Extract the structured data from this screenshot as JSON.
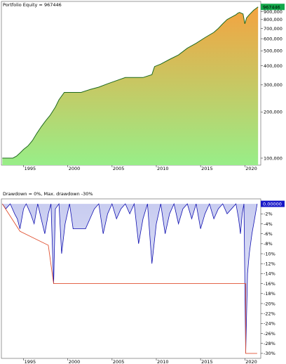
{
  "chart_data": [
    {
      "type": "area",
      "title": "Portfolio Equity = 967446",
      "scale": "log",
      "ylim": [
        90000,
        1050000
      ],
      "xlim": [
        1992.5,
        2021.8
      ],
      "grid": false,
      "legend": "none",
      "colors": {
        "fill_top": "#f4a340",
        "fill_bottom": "#98ee88",
        "line": "#1f6a1f",
        "badge_bg": "#13a84a",
        "badge_text": "#000000"
      },
      "x_ticks": [
        {
          "x": 1995,
          "label": "1995"
        },
        {
          "x": 2000,
          "label": "2000"
        },
        {
          "x": 2005,
          "label": "2005"
        },
        {
          "x": 2010,
          "label": "2010"
        },
        {
          "x": 2015,
          "label": "2015"
        },
        {
          "x": 2020,
          "label": "2020"
        }
      ],
      "y_ticks": [
        {
          "y": 900000,
          "label": "900,000"
        },
        {
          "y": 800000,
          "label": "800,000"
        },
        {
          "y": 700000,
          "label": "700,000"
        },
        {
          "y": 600000,
          "label": "600,000"
        },
        {
          "y": 500000,
          "label": "500,000"
        },
        {
          "y": 400000,
          "label": "400,000"
        },
        {
          "y": 300000,
          "label": "300,000"
        },
        {
          "y": 200000,
          "label": "200,000"
        },
        {
          "y": 100000,
          "label": "100,000"
        }
      ],
      "last_value_label": "967446",
      "last_value": 967446,
      "x": [
        1992.6,
        1993.8,
        1994.2,
        1994.6,
        1995.0,
        1995.5,
        1996.0,
        1996.5,
        1997.0,
        1997.5,
        1998.0,
        1998.6,
        1999.0,
        1999.6,
        2000.6,
        2001.5,
        2002.5,
        2003.5,
        2004.5,
        2005.5,
        2006.5,
        2007.5,
        2008.5,
        2009.5,
        2009.8,
        2010.5,
        2011.5,
        2012.5,
        2013.5,
        2014.5,
        2015.5,
        2016.5,
        2017.0,
        2017.5,
        2018.0,
        2018.5,
        2019.0,
        2019.2,
        2019.4,
        2019.8,
        2020.0,
        2020.2,
        2020.5,
        2021.0,
        2021.5
      ],
      "y": [
        100000,
        100000,
        103000,
        108000,
        114000,
        120000,
        130000,
        145000,
        160000,
        175000,
        190000,
        215000,
        240000,
        268000,
        268000,
        268000,
        280000,
        290000,
        305000,
        320000,
        335000,
        335000,
        335000,
        350000,
        395000,
        410000,
        440000,
        470000,
        520000,
        560000,
        610000,
        660000,
        700000,
        750000,
        800000,
        830000,
        860000,
        880000,
        890000,
        870000,
        750000,
        820000,
        860000,
        920000,
        967446
      ]
    },
    {
      "type": "area",
      "title": "Drawdown = 0%, Max. drawdown -30%",
      "ylim": [
        -31,
        1
      ],
      "xlim": [
        1992.5,
        2021.8
      ],
      "grid": false,
      "legend": "none",
      "colors": {
        "fill_top": "#c8ccf0",
        "fill_bottom": "#eef0fb",
        "line": "#1010b0",
        "max_line": "#e05030",
        "badge_bg": "#1717c8",
        "badge_text": "#ffffff"
      },
      "x_ticks": [
        {
          "x": 1995,
          "label": "1995"
        },
        {
          "x": 2000,
          "label": "2000"
        },
        {
          "x": 2005,
          "label": "2005"
        },
        {
          "x": 2010,
          "label": "2010"
        },
        {
          "x": 2015,
          "label": "2015"
        },
        {
          "x": 2020,
          "label": "2020"
        }
      ],
      "y_ticks": [
        {
          "y": -2,
          "label": "-2%"
        },
        {
          "y": -4,
          "label": "-4%"
        },
        {
          "y": -6,
          "label": "-6%"
        },
        {
          "y": -8,
          "label": "-8%"
        },
        {
          "y": -10,
          "label": "-10%"
        },
        {
          "y": -12,
          "label": "-12%"
        },
        {
          "y": -14,
          "label": "-14%"
        },
        {
          "y": -16,
          "label": "-16%"
        },
        {
          "y": -18,
          "label": "-18%"
        },
        {
          "y": -20,
          "label": "-20%"
        },
        {
          "y": -22,
          "label": "-22%"
        },
        {
          "y": -24,
          "label": "-24%"
        },
        {
          "y": -26,
          "label": "-26%"
        },
        {
          "y": -28,
          "label": "-28%"
        },
        {
          "y": -30,
          "label": "-30%"
        }
      ],
      "last_value_label": "0.00000",
      "last_value": 0,
      "x": [
        1992.6,
        1993.0,
        1993.5,
        1994.0,
        1994.3,
        1994.6,
        1995.0,
        1995.3,
        1995.8,
        1996.2,
        1996.6,
        1997.0,
        1997.4,
        1997.8,
        1998.1,
        1998.4,
        1998.6,
        1999.0,
        1999.3,
        1999.7,
        2000.2,
        2000.6,
        2001.0,
        2001.5,
        2002.0,
        2002.5,
        2003.0,
        2003.5,
        2004.0,
        2004.5,
        2005.0,
        2005.5,
        2006.0,
        2006.5,
        2007.0,
        2007.5,
        2008.0,
        2008.5,
        2009.0,
        2009.5,
        2010.0,
        2010.5,
        2011.0,
        2011.5,
        2012.0,
        2012.5,
        2013.0,
        2013.5,
        2014.0,
        2014.5,
        2015.0,
        2015.5,
        2016.0,
        2016.5,
        2017.0,
        2017.5,
        2018.0,
        2018.5,
        2019.0,
        2019.3,
        2019.5,
        2019.7,
        2019.9,
        2020.1,
        2020.3,
        2020.5,
        2020.8,
        2021.1,
        2021.4
      ],
      "y": [
        0,
        -1,
        0,
        -2,
        -3,
        -5,
        -1,
        0,
        -2,
        -4,
        0,
        -3,
        -6,
        -2,
        0,
        -16,
        -1,
        0,
        -10,
        -4,
        0,
        -5,
        -5,
        -5,
        -5,
        -3,
        -1,
        0,
        -6,
        -2,
        0,
        -3,
        -1,
        0,
        -2,
        0,
        -8,
        -3,
        0,
        -12,
        -4,
        0,
        -6,
        -2,
        0,
        -4,
        -1,
        0,
        -3,
        0,
        -5,
        -2,
        0,
        -3,
        -1,
        0,
        -2,
        -1,
        0,
        -3,
        -6,
        -2,
        0,
        -30,
        -14,
        -10,
        -6,
        -3,
        0
      ],
      "max_dd_x": [
        1992.6,
        1994.6,
        1994.6,
        1997.8,
        1997.8,
        1998.4,
        1998.4,
        2020.1,
        2020.1,
        2021.4
      ],
      "max_dd_y": [
        0,
        -5.5,
        -5.5,
        -8.3,
        -8.3,
        -16,
        -16,
        -16,
        -30,
        -30
      ]
    }
  ]
}
